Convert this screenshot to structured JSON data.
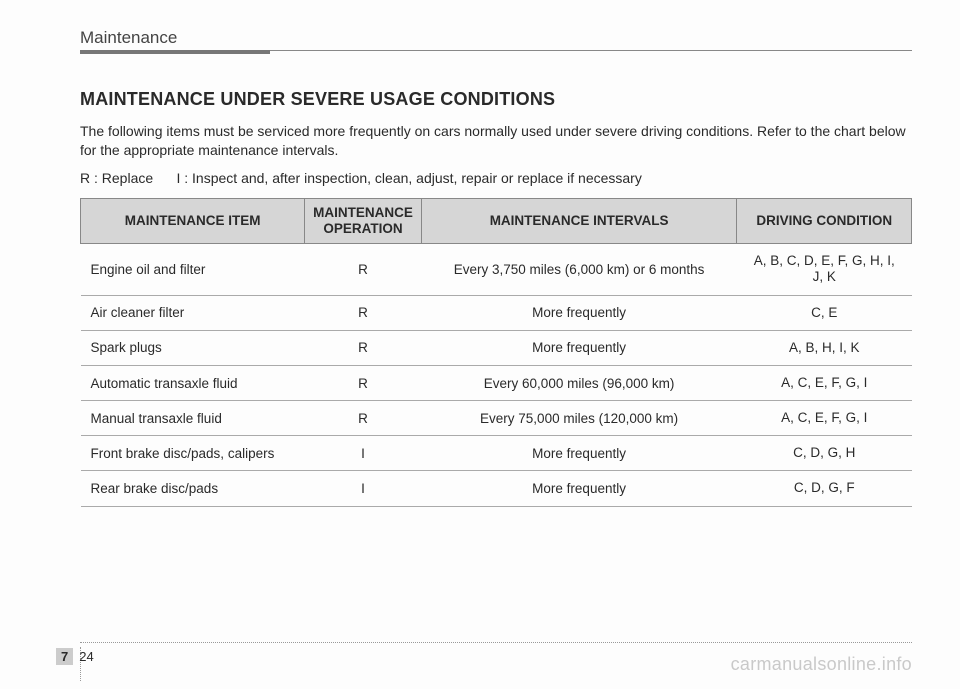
{
  "header": {
    "section": "Maintenance"
  },
  "title": "MAINTENANCE UNDER SEVERE USAGE CONDITIONS",
  "intro": "The following items must be serviced more frequently on cars normally used under severe driving conditions. Refer to the chart below for the appropriate maintenance intervals.",
  "legend": "R : Replace      I : Inspect and, after inspection, clean, adjust, repair or replace if necessary",
  "table": {
    "headers": {
      "item": "MAINTENANCE ITEM",
      "operation": "MAINTENANCE OPERATION",
      "intervals": "MAINTENANCE INTERVALS",
      "condition": "DRIVING CONDITION"
    },
    "rows": [
      {
        "item": "Engine oil and filter",
        "operation": "R",
        "intervals": "Every 3,750 miles (6,000 km) or 6 months",
        "condition": "A, B, C, D, E, F, G, H, I, J, K"
      },
      {
        "item": "Air cleaner filter",
        "operation": "R",
        "intervals": "More frequently",
        "condition": "C, E"
      },
      {
        "item": "Spark plugs",
        "operation": "R",
        "intervals": "More frequently",
        "condition": "A, B, H, I, K"
      },
      {
        "item": "Automatic transaxle fluid",
        "operation": "R",
        "intervals": "Every 60,000 miles (96,000 km)",
        "condition": "A, C, E, F, G, I"
      },
      {
        "item": "Manual transaxle fluid",
        "operation": "R",
        "intervals": "Every 75,000 miles (120,000 km)",
        "condition": "A, C, E, F, G, I"
      },
      {
        "item": "Front brake disc/pads, calipers",
        "operation": "I",
        "intervals": "More frequently",
        "condition": "C, D, G, H"
      },
      {
        "item": "Rear brake disc/pads",
        "operation": "I",
        "intervals": "More frequently",
        "condition": "C, D, G, F"
      }
    ]
  },
  "footer": {
    "chapter": "7",
    "page": "24",
    "watermark": "carmanualsonline.info"
  }
}
